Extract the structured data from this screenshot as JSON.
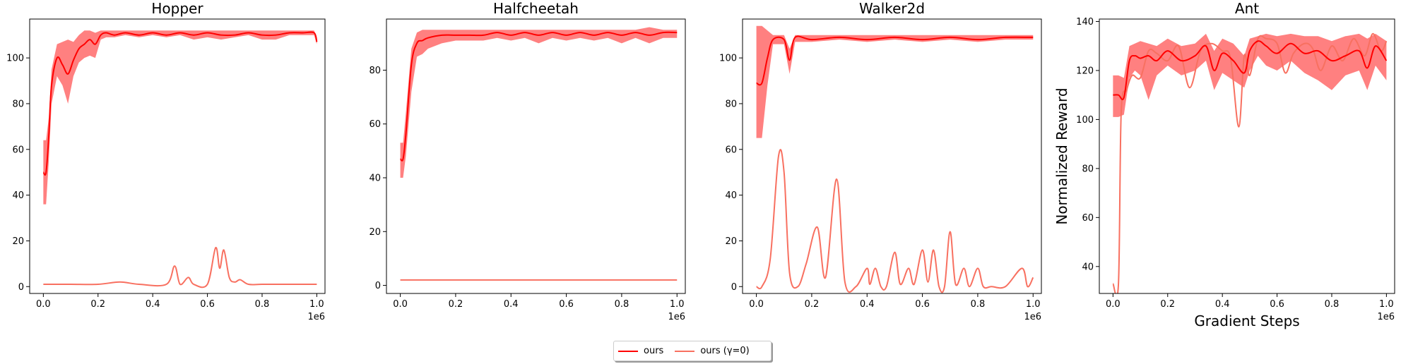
{
  "colors": {
    "ours": "#ff0000",
    "ours_gamma0": "#f87060",
    "band": "#ff5555"
  },
  "legend": {
    "placement": "bottom-center",
    "items": [
      {
        "label": "ours",
        "color": "#ff0000"
      },
      {
        "label": "ours (γ=0)",
        "color": "#f87060"
      }
    ]
  },
  "chart_data": [
    {
      "type": "line",
      "title": "Hopper",
      "xlabel": "",
      "ylabel": "",
      "x_offset_label": "1e6",
      "xlim": [
        -0.05,
        1.03
      ],
      "ylim": [
        -3,
        117
      ],
      "xticks": [
        0.0,
        0.2,
        0.4,
        0.6,
        0.8,
        1.0
      ],
      "xtick_labels": [
        "0.0",
        "0.2",
        "0.4",
        "0.6",
        "0.8",
        "1.0"
      ],
      "yticks": [
        0,
        20,
        40,
        60,
        80,
        100
      ],
      "series": [
        {
          "name": "ours",
          "x": [
            0.0,
            0.01,
            0.02,
            0.03,
            0.05,
            0.07,
            0.09,
            0.11,
            0.13,
            0.15,
            0.17,
            0.19,
            0.21,
            0.23,
            0.26,
            0.3,
            0.35,
            0.4,
            0.45,
            0.5,
            0.55,
            0.6,
            0.65,
            0.7,
            0.75,
            0.8,
            0.85,
            0.9,
            0.95,
            0.99,
            1.0
          ],
          "y": [
            50,
            50,
            66,
            88,
            100,
            97,
            93,
            99,
            104,
            106,
            108,
            106,
            110,
            111,
            110,
            111,
            110,
            111,
            110,
            111,
            110,
            111,
            110,
            110,
            111,
            110,
            110,
            111,
            111,
            111,
            107
          ],
          "lower": [
            36,
            36,
            55,
            80,
            92,
            88,
            80,
            92,
            98,
            100,
            101,
            100,
            108,
            109,
            109,
            110,
            109,
            110,
            109,
            110,
            108,
            109,
            108,
            109,
            110,
            108,
            108,
            110,
            110,
            110,
            106
          ],
          "upper": [
            64,
            64,
            74,
            95,
            106,
            107,
            108,
            107,
            110,
            112,
            112,
            111,
            112,
            112,
            112,
            112,
            112,
            112,
            112,
            112,
            112,
            112,
            112,
            112,
            112,
            112,
            112,
            112,
            112,
            112,
            109
          ]
        },
        {
          "name": "ours (γ=0)",
          "x": [
            0.0,
            0.1,
            0.2,
            0.28,
            0.35,
            0.45,
            0.48,
            0.5,
            0.53,
            0.55,
            0.6,
            0.63,
            0.645,
            0.66,
            0.68,
            0.7,
            0.72,
            0.75,
            0.8,
            0.9,
            1.0
          ],
          "y": [
            1,
            1,
            1,
            2,
            1,
            1,
            9,
            1,
            4,
            1,
            1,
            17,
            8,
            16,
            4,
            2,
            3,
            1,
            1,
            1,
            1
          ]
        }
      ]
    },
    {
      "type": "line",
      "title": "Halfcheetah",
      "xlabel": "",
      "ylabel": "",
      "x_offset_label": "1e6",
      "xlim": [
        -0.05,
        1.03
      ],
      "ylim": [
        -3,
        99
      ],
      "xticks": [
        0.0,
        0.2,
        0.4,
        0.6,
        0.8,
        1.0
      ],
      "xtick_labels": [
        "0.0",
        "0.2",
        "0.4",
        "0.6",
        "0.8",
        "1.0"
      ],
      "yticks": [
        0,
        20,
        40,
        60,
        80
      ],
      "series": [
        {
          "name": "ours",
          "x": [
            0.0,
            0.01,
            0.02,
            0.04,
            0.06,
            0.08,
            0.1,
            0.15,
            0.2,
            0.25,
            0.3,
            0.35,
            0.4,
            0.45,
            0.5,
            0.55,
            0.6,
            0.65,
            0.7,
            0.75,
            0.8,
            0.85,
            0.9,
            0.95,
            1.0
          ],
          "y": [
            47,
            47,
            56,
            82,
            90,
            91,
            92,
            93,
            93,
            93,
            93,
            94,
            93,
            94,
            93,
            94,
            93,
            94,
            93,
            94,
            93,
            94,
            93,
            94,
            94
          ],
          "lower": [
            40,
            40,
            48,
            72,
            85,
            86,
            88,
            90,
            91,
            91,
            91,
            92,
            91,
            92,
            90,
            92,
            91,
            92,
            91,
            92,
            90,
            92,
            90,
            92,
            92
          ],
          "upper": [
            53,
            53,
            64,
            88,
            94,
            95,
            95,
            95,
            95,
            95,
            95,
            95,
            95,
            95,
            95,
            95,
            95,
            95,
            95,
            95,
            95,
            95,
            96,
            95,
            95
          ]
        },
        {
          "name": "ours (γ=0)",
          "x": [
            0.0,
            0.05,
            0.2,
            0.4,
            0.6,
            0.8,
            1.0
          ],
          "y": [
            2,
            2,
            2,
            2,
            2,
            2,
            2
          ]
        }
      ]
    },
    {
      "type": "line",
      "title": "Walker2d",
      "xlabel": "",
      "ylabel": "",
      "x_offset_label": "1e6",
      "xlim": [
        -0.05,
        1.03
      ],
      "ylim": [
        -3,
        117
      ],
      "xticks": [
        0.0,
        0.2,
        0.4,
        0.6,
        0.8,
        1.0
      ],
      "xtick_labels": [
        "0.0",
        "0.2",
        "0.4",
        "0.6",
        "0.8",
        "1.0"
      ],
      "yticks": [
        0,
        20,
        40,
        60,
        80,
        100
      ],
      "series": [
        {
          "name": "ours",
          "x": [
            0.0,
            0.02,
            0.04,
            0.06,
            0.1,
            0.12,
            0.14,
            0.2,
            0.3,
            0.4,
            0.5,
            0.6,
            0.7,
            0.8,
            0.9,
            1.0
          ],
          "y": [
            89,
            89,
            100,
            108,
            108,
            99,
            109,
            108,
            109,
            108,
            109,
            108,
            109,
            108,
            109,
            109
          ],
          "lower": [
            65,
            65,
            88,
            106,
            106,
            93,
            107,
            107,
            108,
            107,
            108,
            107,
            108,
            107,
            108,
            108
          ],
          "upper": [
            114,
            114,
            112,
            110,
            110,
            104,
            110,
            110,
            110,
            110,
            110,
            110,
            110,
            110,
            110,
            110
          ]
        },
        {
          "name": "ours (γ=0)",
          "x": [
            0.0,
            0.02,
            0.05,
            0.08,
            0.1,
            0.12,
            0.15,
            0.18,
            0.22,
            0.25,
            0.29,
            0.32,
            0.36,
            0.4,
            0.41,
            0.43,
            0.45,
            0.47,
            0.5,
            0.52,
            0.55,
            0.57,
            0.6,
            0.62,
            0.64,
            0.66,
            0.68,
            0.7,
            0.72,
            0.75,
            0.77,
            0.8,
            0.82,
            0.85,
            0.9,
            0.96,
            0.98,
            1.0
          ],
          "y": [
            0,
            0,
            12,
            57,
            50,
            6,
            0,
            10,
            26,
            4,
            47,
            2,
            0,
            8,
            1,
            8,
            0,
            0,
            15,
            1,
            8,
            1,
            16,
            2,
            16,
            0,
            0,
            24,
            1,
            8,
            0,
            8,
            0,
            0,
            0,
            8,
            0,
            4
          ]
        }
      ]
    },
    {
      "type": "line",
      "title": "Ant",
      "xlabel": "Gradient Steps",
      "ylabel": "Normalized Reward",
      "x_offset_label": "1e6",
      "xlim": [
        -0.05,
        1.03
      ],
      "ylim": [
        29,
        141
      ],
      "xticks": [
        0.0,
        0.2,
        0.4,
        0.6,
        0.8,
        1.0
      ],
      "xtick_labels": [
        "0.0",
        "0.2",
        "0.4",
        "0.6",
        "0.8",
        "1.0"
      ],
      "yticks": [
        40,
        60,
        80,
        100,
        120,
        140
      ],
      "series": [
        {
          "name": "ours",
          "x": [
            0.0,
            0.02,
            0.04,
            0.06,
            0.08,
            0.1,
            0.13,
            0.16,
            0.2,
            0.25,
            0.3,
            0.34,
            0.37,
            0.4,
            0.44,
            0.48,
            0.5,
            0.53,
            0.56,
            0.6,
            0.65,
            0.7,
            0.75,
            0.8,
            0.85,
            0.9,
            0.93,
            0.96,
            1.0
          ],
          "y": [
            110,
            110,
            109,
            124,
            126,
            125,
            126,
            124,
            128,
            124,
            126,
            130,
            120,
            127,
            124,
            119,
            128,
            132,
            130,
            127,
            131,
            127,
            128,
            124,
            126,
            128,
            121,
            130,
            124
          ],
          "lower": [
            101,
            101,
            102,
            117,
            120,
            118,
            108,
            118,
            122,
            118,
            120,
            124,
            112,
            119,
            116,
            113,
            120,
            126,
            122,
            120,
            124,
            119,
            116,
            112,
            118,
            120,
            112,
            122,
            116
          ],
          "upper": [
            118,
            118,
            117,
            130,
            131,
            132,
            131,
            130,
            133,
            130,
            131,
            135,
            128,
            133,
            131,
            126,
            133,
            134,
            135,
            134,
            135,
            134,
            134,
            132,
            134,
            135,
            133,
            135,
            132
          ]
        },
        {
          "name": "ours (γ=0)",
          "x": [
            0.0,
            0.02,
            0.03,
            0.05,
            0.07,
            0.1,
            0.13,
            0.16,
            0.2,
            0.24,
            0.28,
            0.32,
            0.36,
            0.4,
            0.43,
            0.46,
            0.48,
            0.5,
            0.53,
            0.56,
            0.6,
            0.63,
            0.66,
            0.7,
            0.73,
            0.76,
            0.8,
            0.84,
            0.88,
            0.92,
            0.95,
            0.98,
            1.0
          ],
          "y": [
            33,
            33,
            103,
            112,
            118,
            117,
            128,
            127,
            124,
            130,
            113,
            128,
            131,
            128,
            125,
            97,
            126,
            118,
            133,
            133,
            131,
            119,
            127,
            131,
            129,
            120,
            130,
            124,
            133,
            126,
            135,
            128,
            132
          ]
        }
      ]
    }
  ]
}
